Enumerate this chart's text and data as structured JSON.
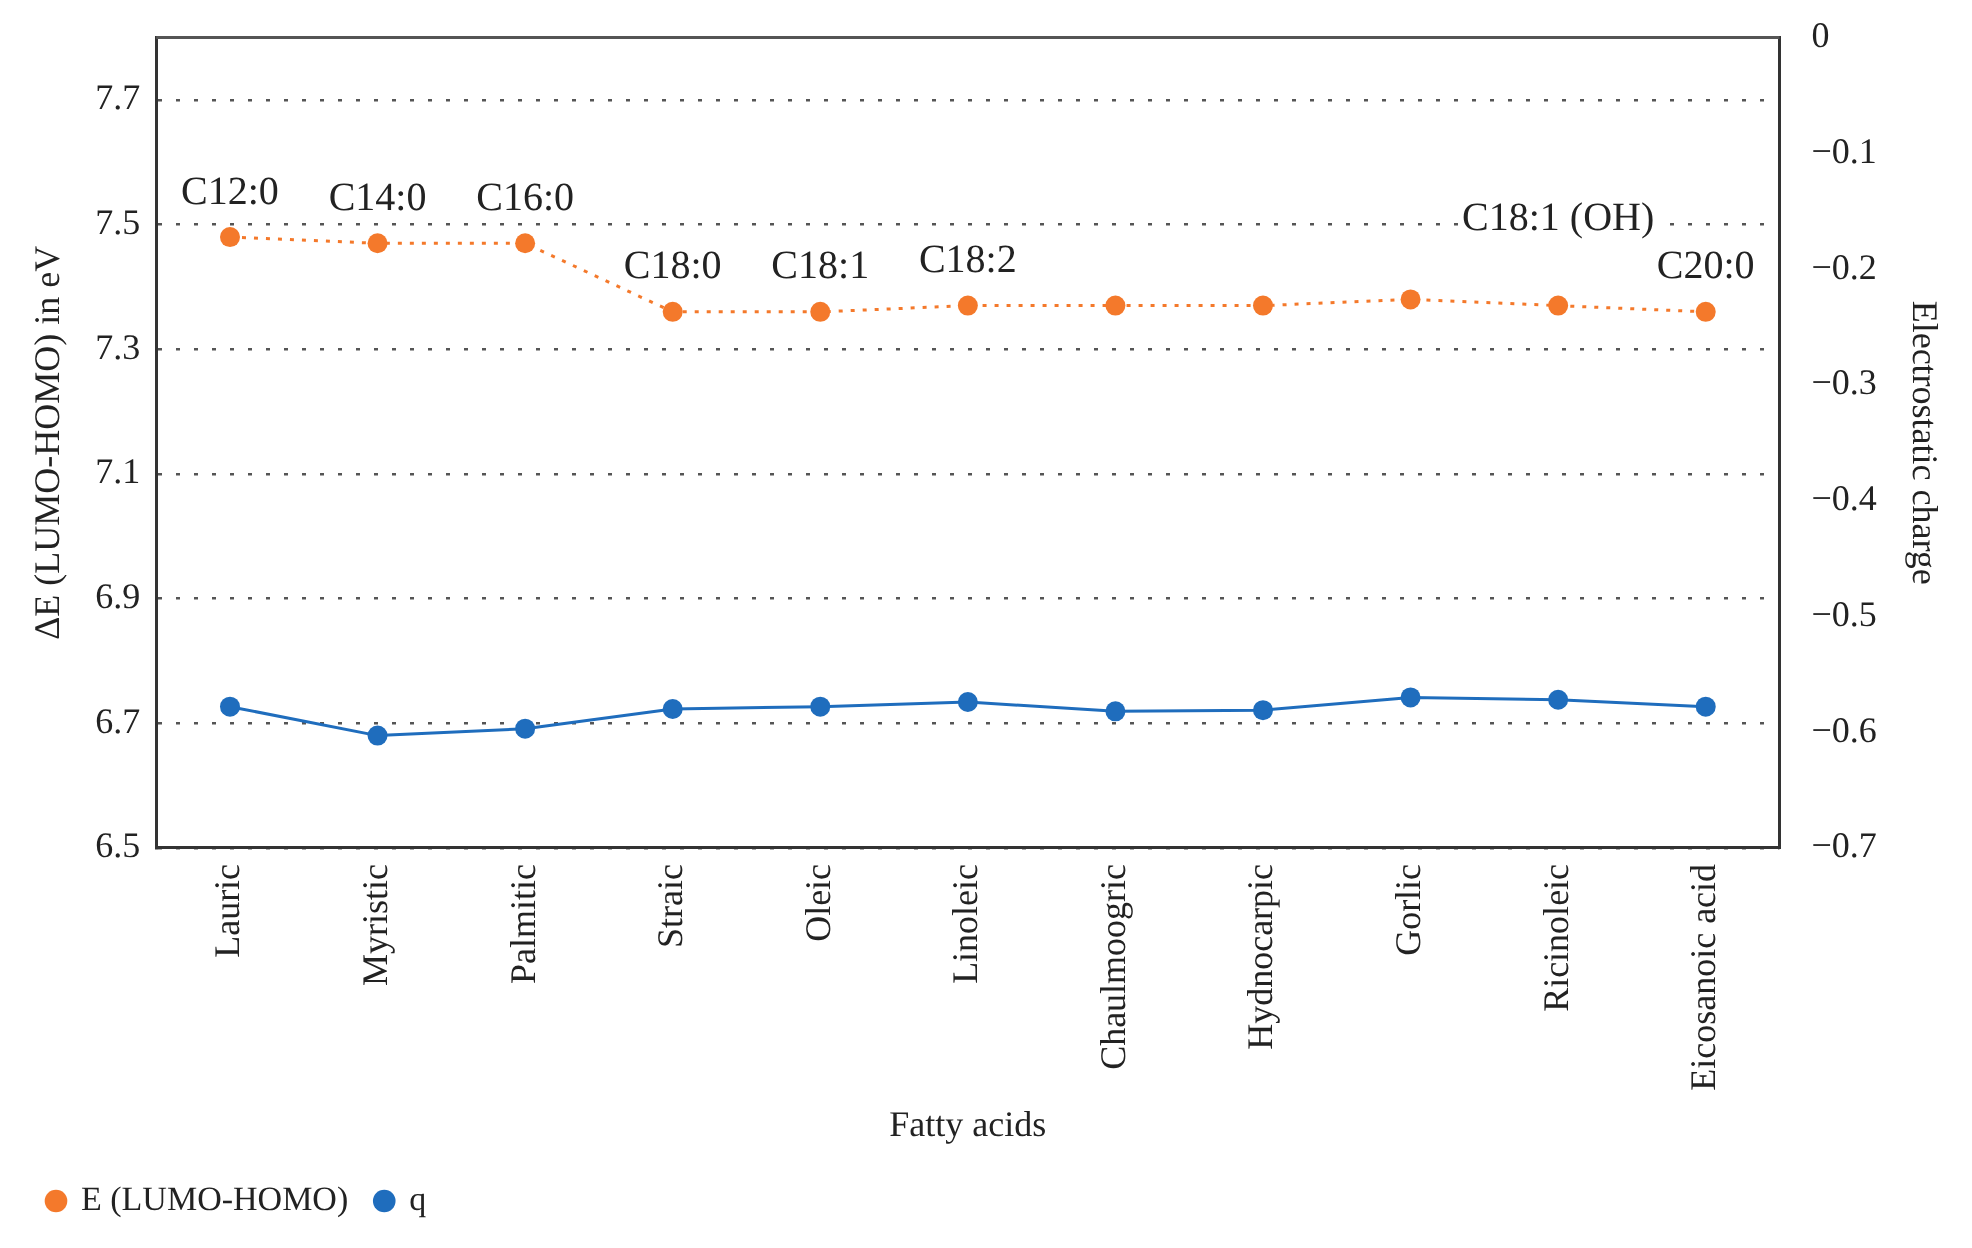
{
  "chart_data": {
    "type": "line",
    "xlabel": "Fatty acids",
    "ylabel": "ΔE (LUMO-HOMO) in eV",
    "y2label": "Electrostatic charge",
    "categories": [
      "Lauric",
      "Myristic",
      "Palmitic",
      "Straic",
      "Oleic",
      "Linoleic",
      "Chaulmoogric",
      "Hydnocarpic",
      "Gorlic",
      "Ricinoleic",
      "Eicosanoic acid"
    ],
    "series": [
      {
        "name": "E (LUMO-HOMO)",
        "color": "#f4792b",
        "line_style": "dotted",
        "values": [
          7.48,
          7.47,
          7.47,
          7.36,
          7.36,
          7.37,
          7.37,
          7.37,
          7.38,
          7.37,
          7.36
        ]
      },
      {
        "name": "q",
        "color": "#1f6dbd",
        "line_style": "solid",
        "axis": "y2",
        "values": [
          -0.578,
          -0.603,
          -0.597,
          -0.58,
          -0.578,
          -0.574,
          -0.582,
          -0.581,
          -0.57,
          -0.572,
          -0.578
        ]
      }
    ],
    "ylim": [
      6.5,
      7.8
    ],
    "yticks": [
      6.5,
      6.7,
      6.9,
      7.1,
      7.3,
      7.5,
      7.7
    ],
    "y2lim": [
      -0.7,
      0
    ],
    "y2ticks": [
      {
        "value": -0.7,
        "label": "−0.7"
      },
      {
        "value": -0.6,
        "label": "−0.6"
      },
      {
        "value": -0.5,
        "label": "−0.5"
      },
      {
        "value": -0.4,
        "label": "−0.4"
      },
      {
        "value": -0.3,
        "label": "−0.3"
      },
      {
        "value": -0.2,
        "label": "−0.2"
      },
      {
        "value": -0.1,
        "label": "−0.1"
      },
      0
    ],
    "annotations": [
      {
        "text": "C12:0",
        "x": "Lauric",
        "y": 7.48
      },
      {
        "text": "C14:0",
        "x": "Myristic",
        "y": 7.47
      },
      {
        "text": "C16:0",
        "x": "Palmitic",
        "y": 7.47
      },
      {
        "text": "C18:0",
        "x": "Straic",
        "y": 7.36
      },
      {
        "text": "C18:1",
        "x": "Oleic",
        "y": 7.36
      },
      {
        "text": "C18:2",
        "x": "Linoleic",
        "y": 7.37
      },
      {
        "text": "C18:1 (OH)",
        "x": "Ricinoleic",
        "y": 7.37
      },
      {
        "text": "C20:0",
        "x": "Eicosanoic acid",
        "y": 7.36
      }
    ],
    "grid": "y",
    "legend": "bottom left",
    "marker": "circle"
  }
}
